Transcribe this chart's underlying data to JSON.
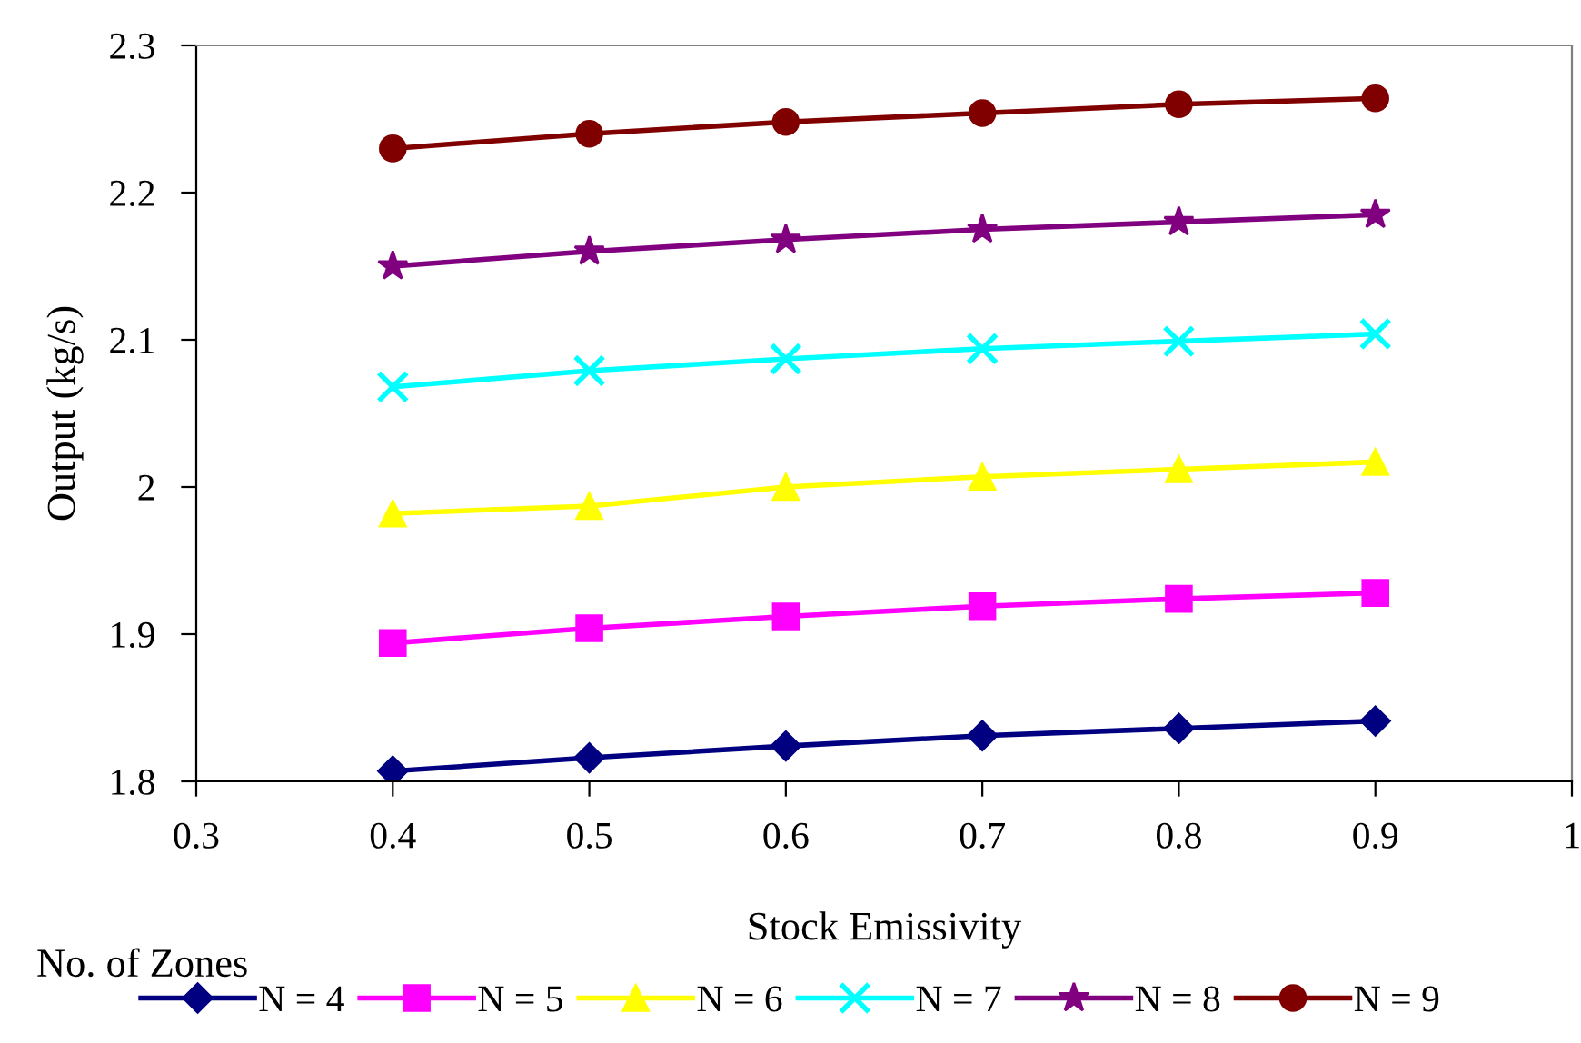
{
  "chart_data": {
    "type": "line",
    "xlabel": "Stock Emissivity",
    "ylabel": "Output (kg/s)",
    "legend_title": "No. of Zones",
    "legend": "bottom",
    "grid": false,
    "x": [
      0.4,
      0.5,
      0.6,
      0.7,
      0.8,
      0.9
    ],
    "xlim": [
      0.3,
      1
    ],
    "xticks": [
      0.3,
      0.4,
      0.5,
      0.6,
      0.7,
      0.8,
      0.9,
      1
    ],
    "ylim": [
      1.8,
      2.3
    ],
    "yticks": [
      1.8,
      1.9,
      2,
      2.1,
      2.2,
      2.3
    ],
    "series": [
      {
        "name": "N = 4",
        "color": "#000080",
        "marker": "diamond",
        "values": [
          1.807,
          1.816,
          1.824,
          1.831,
          1.836,
          1.841
        ]
      },
      {
        "name": "N = 5",
        "color": "#ff00ff",
        "marker": "square",
        "values": [
          1.894,
          1.904,
          1.912,
          1.919,
          1.924,
          1.928
        ]
      },
      {
        "name": "N = 6",
        "color": "#ffff00",
        "marker": "triangle",
        "values": [
          1.982,
          1.987,
          2.0,
          2.007,
          2.012,
          2.017
        ]
      },
      {
        "name": "N = 7",
        "color": "#00ffff",
        "marker": "cross",
        "values": [
          2.068,
          2.079,
          2.087,
          2.094,
          2.099,
          2.104
        ]
      },
      {
        "name": "N = 8",
        "color": "#800080",
        "marker": "star",
        "values": [
          2.15,
          2.16,
          2.168,
          2.175,
          2.18,
          2.185
        ]
      },
      {
        "name": "N = 9",
        "color": "#800000",
        "marker": "circle",
        "values": [
          2.23,
          2.24,
          2.248,
          2.254,
          2.26,
          2.264
        ]
      }
    ]
  }
}
